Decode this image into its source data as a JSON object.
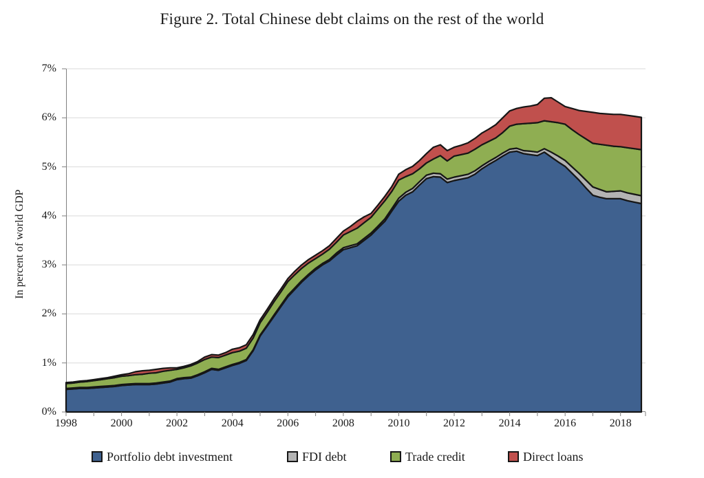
{
  "title": "Figure 2. Total Chinese debt claims on the rest of the world",
  "y_axis": {
    "label": "In percent of world GDP",
    "tick_labels": [
      "0%",
      "1%",
      "2%",
      "3%",
      "4%",
      "5%",
      "6%",
      "7%"
    ]
  },
  "x_axis": {
    "tick_labels": [
      "1998",
      "2000",
      "2002",
      "2004",
      "2006",
      "2008",
      "2010",
      "2012",
      "2014",
      "2016",
      "2018"
    ],
    "tick_years": [
      1998,
      2000,
      2002,
      2004,
      2006,
      2008,
      2010,
      2012,
      2014,
      2016,
      2018
    ]
  },
  "colors": {
    "portfolio": "#3F618F",
    "fdi": "#B3B3B3",
    "trade_credit": "#8FAE52",
    "direct_loans": "#C0504D",
    "outline": "#161616",
    "gridline": "#D9D9D9",
    "axis": "#7F7F7F",
    "text": "#1A1A1A",
    "background": "#FFFFFF"
  },
  "chart_data": {
    "type": "area",
    "stacked": true,
    "title": "Figure 2. Total Chinese debt claims on the rest of the world",
    "xlabel": "",
    "ylabel": "In percent of world GDP",
    "unit": "% of world GDP",
    "grid": true,
    "legend_position": "bottom",
    "ylim": [
      0,
      7
    ],
    "xlim": [
      1998,
      2018.9
    ],
    "x": [
      1998,
      1998.25,
      1998.5,
      1998.75,
      1999,
      1999.25,
      1999.5,
      1999.75,
      2000,
      2000.25,
      2000.5,
      2000.75,
      2001,
      2001.25,
      2001.5,
      2001.75,
      2002,
      2002.25,
      2002.5,
      2002.75,
      2003,
      2003.25,
      2003.5,
      2003.75,
      2004,
      2004.25,
      2004.5,
      2004.75,
      2005,
      2005.25,
      2005.5,
      2005.75,
      2006,
      2006.25,
      2006.5,
      2006.75,
      2007,
      2007.25,
      2007.5,
      2007.75,
      2008,
      2008.25,
      2008.5,
      2008.75,
      2009,
      2009.25,
      2009.5,
      2009.75,
      2010,
      2010.25,
      2010.5,
      2010.75,
      2011,
      2011.25,
      2011.5,
      2011.75,
      2012,
      2012.25,
      2012.5,
      2012.75,
      2013,
      2013.25,
      2013.5,
      2013.75,
      2014,
      2014.25,
      2014.5,
      2014.75,
      2015,
      2015.25,
      2015.5,
      2015.75,
      2016,
      2016.25,
      2016.5,
      2016.75,
      2017,
      2017.25,
      2017.5,
      2017.75,
      2018,
      2018.25,
      2018.5,
      2018.75
    ],
    "series": [
      {
        "name": "Portfolio debt investment",
        "color": "#3F618F",
        "values": [
          0.46,
          0.47,
          0.48,
          0.48,
          0.49,
          0.5,
          0.51,
          0.52,
          0.54,
          0.55,
          0.56,
          0.56,
          0.56,
          0.57,
          0.59,
          0.61,
          0.66,
          0.68,
          0.69,
          0.74,
          0.8,
          0.87,
          0.85,
          0.9,
          0.95,
          0.99,
          1.05,
          1.25,
          1.55,
          1.75,
          1.95,
          2.15,
          2.35,
          2.5,
          2.65,
          2.78,
          2.9,
          3.0,
          3.08,
          3.2,
          3.31,
          3.35,
          3.39,
          3.5,
          3.61,
          3.75,
          3.89,
          4.1,
          4.3,
          4.42,
          4.49,
          4.63,
          4.76,
          4.8,
          4.79,
          4.68,
          4.72,
          4.75,
          4.78,
          4.85,
          4.96,
          5.05,
          5.13,
          5.22,
          5.3,
          5.32,
          5.27,
          5.25,
          5.23,
          5.3,
          5.2,
          5.1,
          5.01,
          4.87,
          4.73,
          4.57,
          4.42,
          4.38,
          4.35,
          4.35,
          4.35,
          4.31,
          4.28,
          4.25
        ]
      },
      {
        "name": "FDI debt",
        "color": "#B3B3B3",
        "values": [
          0.02,
          0.02,
          0.02,
          0.02,
          0.02,
          0.02,
          0.02,
          0.02,
          0.02,
          0.02,
          0.02,
          0.02,
          0.02,
          0.02,
          0.02,
          0.02,
          0.02,
          0.02,
          0.02,
          0.02,
          0.02,
          0.02,
          0.02,
          0.02,
          0.02,
          0.02,
          0.02,
          0.02,
          0.02,
          0.02,
          0.03,
          0.03,
          0.03,
          0.03,
          0.03,
          0.03,
          0.03,
          0.03,
          0.03,
          0.04,
          0.04,
          0.04,
          0.04,
          0.04,
          0.04,
          0.04,
          0.05,
          0.05,
          0.06,
          0.06,
          0.07,
          0.07,
          0.07,
          0.07,
          0.07,
          0.07,
          0.07,
          0.07,
          0.07,
          0.07,
          0.06,
          0.06,
          0.06,
          0.06,
          0.06,
          0.06,
          0.06,
          0.07,
          0.07,
          0.07,
          0.1,
          0.12,
          0.12,
          0.13,
          0.14,
          0.16,
          0.17,
          0.16,
          0.14,
          0.15,
          0.16,
          0.16,
          0.16,
          0.16
        ]
      },
      {
        "name": "Trade credit",
        "color": "#8FAE52",
        "values": [
          0.1,
          0.1,
          0.11,
          0.12,
          0.13,
          0.14,
          0.15,
          0.16,
          0.17,
          0.17,
          0.18,
          0.19,
          0.21,
          0.21,
          0.22,
          0.22,
          0.19,
          0.2,
          0.23,
          0.24,
          0.25,
          0.23,
          0.24,
          0.24,
          0.24,
          0.23,
          0.23,
          0.24,
          0.25,
          0.26,
          0.27,
          0.27,
          0.28,
          0.27,
          0.25,
          0.23,
          0.2,
          0.19,
          0.21,
          0.22,
          0.26,
          0.29,
          0.32,
          0.32,
          0.32,
          0.35,
          0.37,
          0.35,
          0.37,
          0.32,
          0.3,
          0.26,
          0.25,
          0.29,
          0.37,
          0.37,
          0.43,
          0.43,
          0.43,
          0.44,
          0.43,
          0.41,
          0.4,
          0.42,
          0.47,
          0.49,
          0.55,
          0.57,
          0.6,
          0.57,
          0.62,
          0.68,
          0.74,
          0.76,
          0.79,
          0.84,
          0.89,
          0.92,
          0.95,
          0.92,
          0.9,
          0.92,
          0.93,
          0.94
        ]
      },
      {
        "name": "Direct loans",
        "color": "#C0504D",
        "values": [
          0.02,
          0.02,
          0.02,
          0.02,
          0.02,
          0.02,
          0.02,
          0.03,
          0.03,
          0.04,
          0.06,
          0.07,
          0.06,
          0.07,
          0.06,
          0.05,
          0.03,
          0.03,
          0.03,
          0.03,
          0.05,
          0.05,
          0.05,
          0.05,
          0.07,
          0.07,
          0.07,
          0.07,
          0.06,
          0.06,
          0.06,
          0.06,
          0.06,
          0.07,
          0.07,
          0.07,
          0.07,
          0.07,
          0.07,
          0.08,
          0.08,
          0.1,
          0.14,
          0.12,
          0.08,
          0.08,
          0.09,
          0.1,
          0.12,
          0.14,
          0.15,
          0.17,
          0.19,
          0.24,
          0.22,
          0.21,
          0.18,
          0.19,
          0.21,
          0.22,
          0.24,
          0.25,
          0.27,
          0.3,
          0.31,
          0.32,
          0.34,
          0.35,
          0.37,
          0.46,
          0.49,
          0.42,
          0.36,
          0.43,
          0.49,
          0.56,
          0.63,
          0.63,
          0.64,
          0.65,
          0.66,
          0.66,
          0.66,
          0.66
        ]
      }
    ]
  }
}
